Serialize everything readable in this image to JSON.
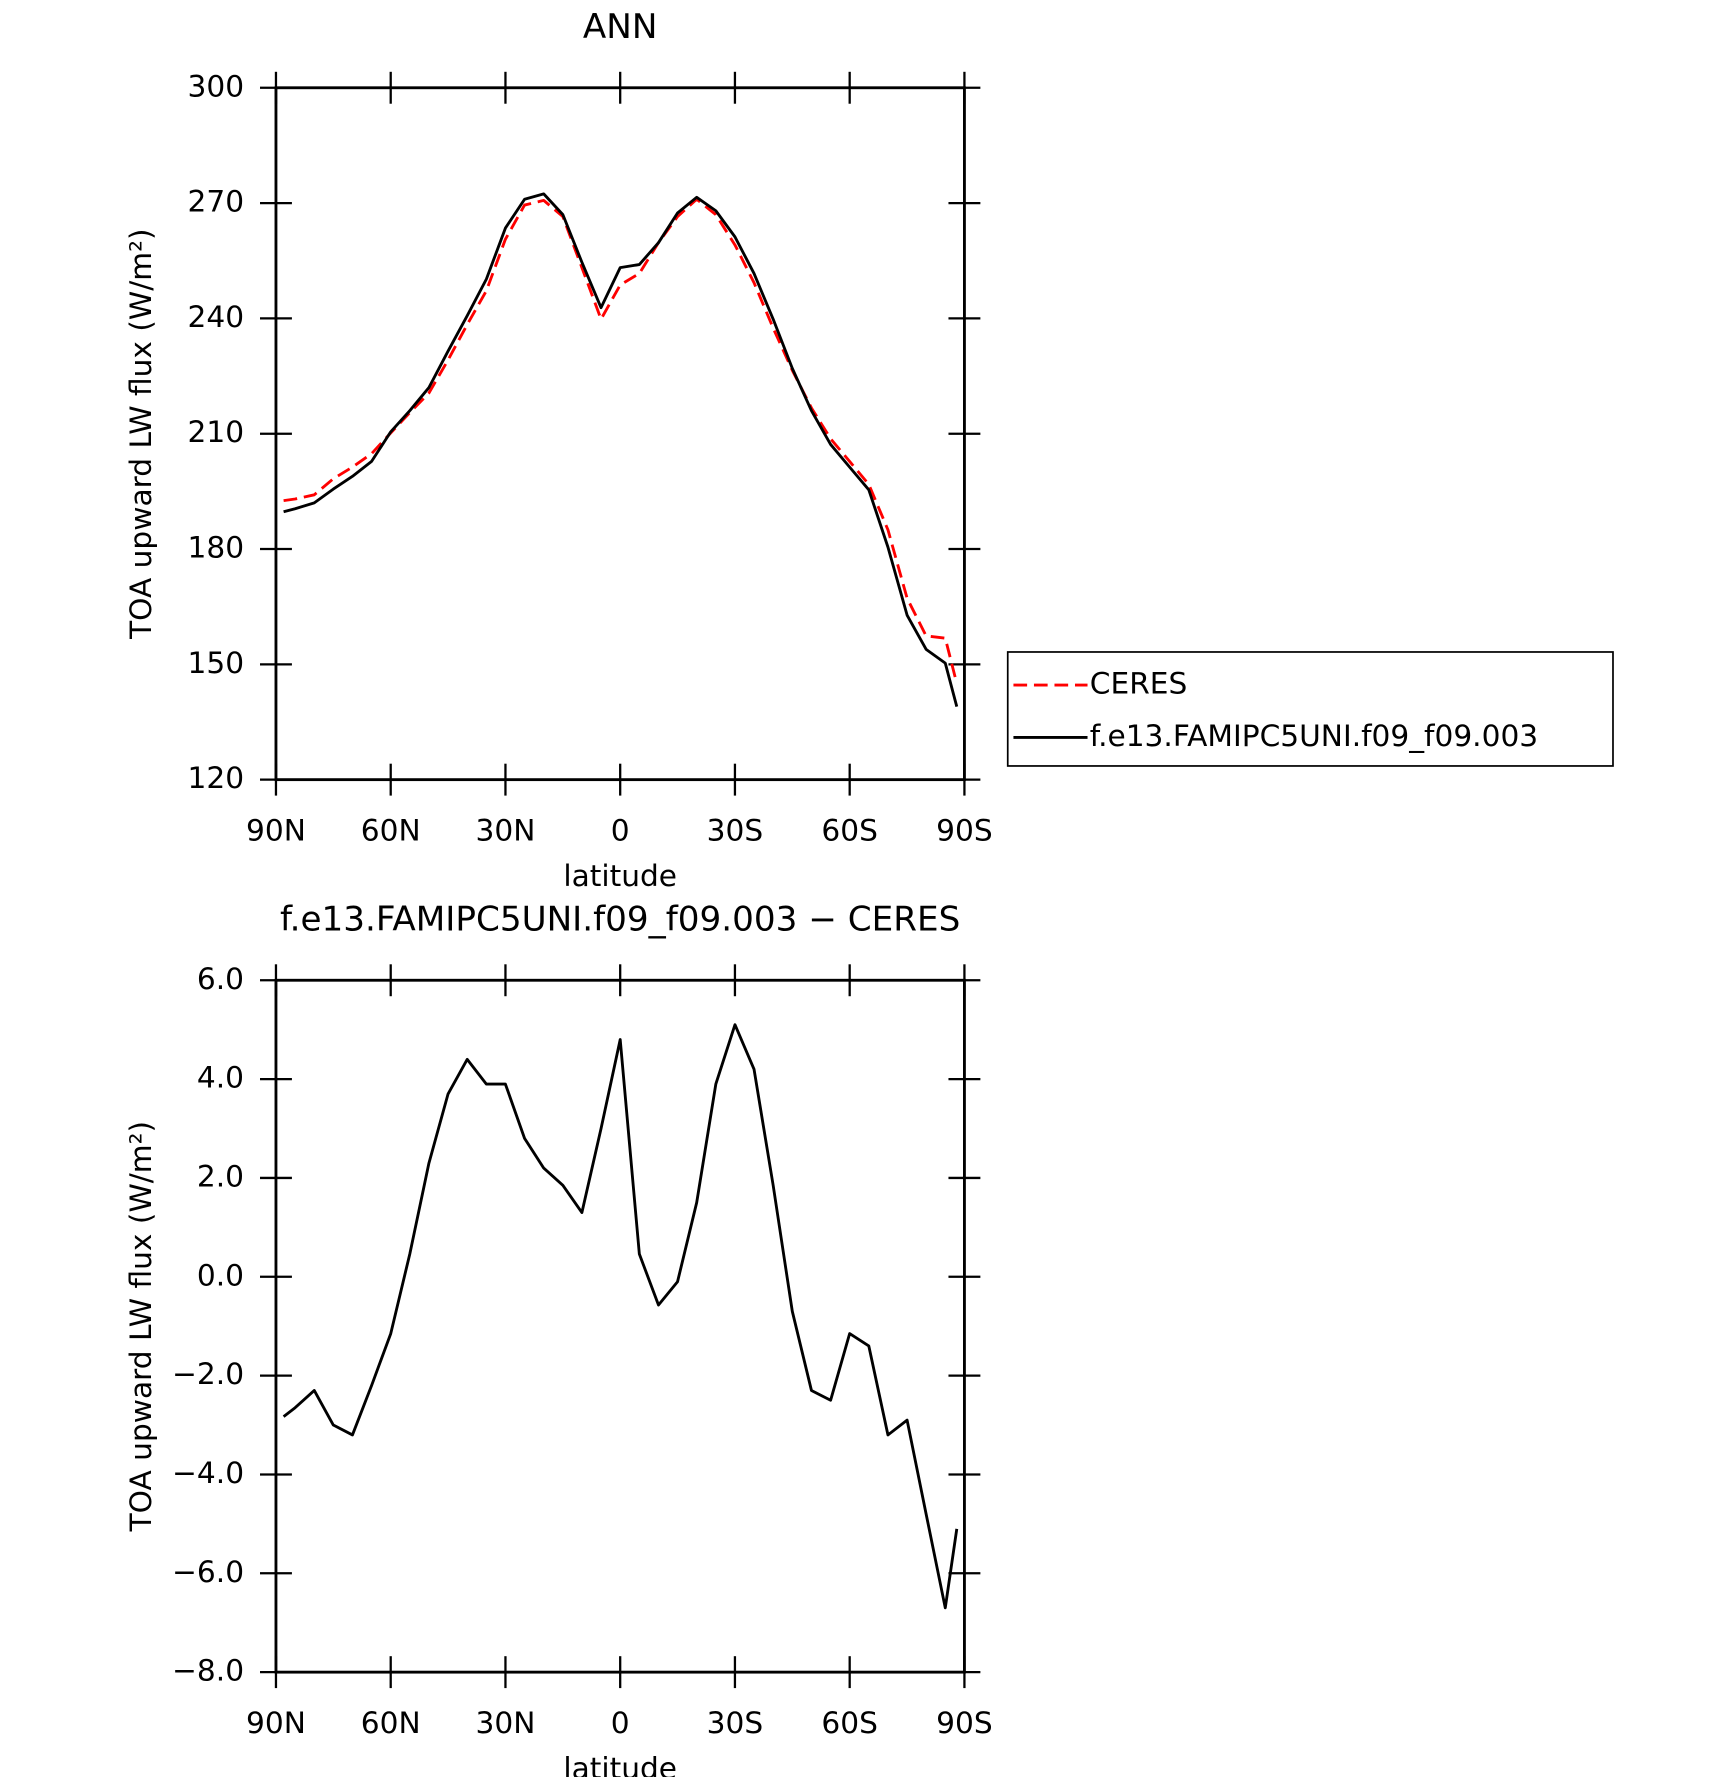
{
  "chart_data": [
    {
      "type": "line",
      "title": "ANN",
      "xlabel": "latitude",
      "ylabel": "TOA upward LW flux (W/m²)",
      "x": [
        88,
        85,
        80,
        75,
        70,
        65,
        60,
        55,
        50,
        45,
        40,
        35,
        30,
        25,
        20,
        15,
        10,
        5,
        0,
        -5,
        -10,
        -15,
        -20,
        -25,
        -30,
        -35,
        -40,
        -45,
        -50,
        -55,
        -60,
        -65,
        -70,
        -75,
        -80,
        -85,
        -88
      ],
      "xlim": [
        90,
        -90
      ],
      "xticks": [
        {
          "value": 90,
          "label": "90N"
        },
        {
          "value": 60,
          "label": "60N"
        },
        {
          "value": 30,
          "label": "30N"
        },
        0,
        {
          "value": -30,
          "label": "30S"
        },
        {
          "value": -60,
          "label": "60S"
        },
        {
          "value": -90,
          "label": "90S"
        }
      ],
      "ylim": [
        120,
        300
      ],
      "yticks": [
        120,
        150,
        180,
        210,
        240,
        270,
        300
      ],
      "legend": "right",
      "series": [
        {
          "name": "CERES",
          "color": "#ff0000",
          "style": "dashed",
          "values": [
            192.6,
            193,
            194.1,
            198.3,
            201.3,
            204.8,
            210.2,
            215.5,
            220.6,
            229.2,
            238.4,
            247.2,
            260.6,
            269.5,
            270.7,
            266.5,
            253.2,
            239.8,
            248.7,
            251.7,
            259.7,
            266.5,
            271,
            267,
            259.1,
            249.3,
            237.5,
            226.5,
            216.7,
            208.7,
            202.8,
            196.8,
            185,
            167.2,
            157.4,
            156.8,
            145
          ]
        },
        {
          "name": "f.e13.FAMIPC5UNI.f09_f09.003",
          "color": "#000000",
          "style": "solid",
          "values": [
            189.7,
            190.5,
            192,
            195.6,
            198.9,
            202.8,
            210.5,
            216,
            222,
            231.5,
            240.7,
            250.2,
            263.5,
            271,
            272.4,
            267,
            254.6,
            242.8,
            253.2,
            254,
            259.7,
            267.4,
            271.5,
            268,
            261.2,
            251.7,
            239.8,
            227,
            216,
            207.2,
            201.3,
            195.4,
            180.5,
            162.8,
            153.9,
            150.3,
            139
          ]
        }
      ]
    },
    {
      "type": "line",
      "title": "f.e13.FAMIPC5UNI.f09_f09.003 − CERES",
      "xlabel": "latitude",
      "ylabel": "TOA upward LW flux (W/m²)",
      "x": [
        88,
        85,
        80,
        75,
        70,
        65,
        60,
        55,
        50,
        45,
        40,
        35,
        30,
        25,
        20,
        15,
        10,
        5,
        0,
        -5,
        -10,
        -15,
        -20,
        -25,
        -30,
        -35,
        -40,
        -45,
        -50,
        -55,
        -60,
        -65,
        -70,
        -75,
        -80,
        -85,
        -88
      ],
      "xlim": [
        90,
        -90
      ],
      "xticks": [
        {
          "value": 90,
          "label": "90N"
        },
        {
          "value": 60,
          "label": "60N"
        },
        {
          "value": 30,
          "label": "30N"
        },
        0,
        {
          "value": -30,
          "label": "30S"
        },
        {
          "value": -60,
          "label": "60S"
        },
        {
          "value": -90,
          "label": "90S"
        }
      ],
      "ylim": [
        -8,
        6
      ],
      "yticks": [
        {
          "value": -8,
          "label": "−8.0"
        },
        {
          "value": -6,
          "label": "−6.0"
        },
        {
          "value": -4,
          "label": "−4.0"
        },
        {
          "value": -2,
          "label": "−2.0"
        },
        {
          "value": 0,
          "label": "0.0"
        },
        {
          "value": 2,
          "label": "2.0"
        },
        {
          "value": 4,
          "label": "4.0"
        },
        {
          "value": 6,
          "label": "6.0"
        }
      ],
      "series": [
        {
          "color": "#000000",
          "style": "solid",
          "values": [
            -2.83,
            -2.65,
            -2.3,
            -3.0,
            -3.2,
            -2.2,
            -1.15,
            0.46,
            2.3,
            3.7,
            4.4,
            3.9,
            3.9,
            2.8,
            2.2,
            1.85,
            1.3,
            3.0,
            4.8,
            0.46,
            -0.57,
            -0.1,
            1.5,
            3.9,
            5.1,
            4.2,
            1.85,
            -0.7,
            -2.3,
            -2.5,
            -1.15,
            -1.4,
            -3.2,
            -2.9,
            -4.8,
            -6.7,
            -5.1
          ]
        }
      ]
    }
  ]
}
